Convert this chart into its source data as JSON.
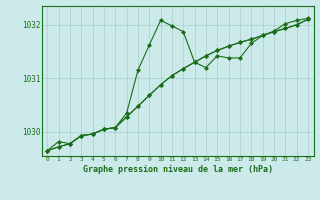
{
  "bg_color": "#cceaea",
  "grid_color": "#aacccc",
  "line_color": "#1a6e1a",
  "title": "Graphe pression niveau de la mer (hPa)",
  "xlabel_ticks": [
    0,
    1,
    2,
    3,
    4,
    5,
    6,
    7,
    8,
    9,
    10,
    11,
    12,
    13,
    14,
    15,
    16,
    17,
    18,
    19,
    20,
    21,
    22,
    23
  ],
  "ylim": [
    1029.55,
    1032.35
  ],
  "yticks": [
    1030,
    1031,
    1032
  ],
  "s1": [
    1029.65,
    1029.82,
    1029.78,
    1029.93,
    1029.96,
    1030.05,
    1030.08,
    1030.35,
    1031.15,
    1031.62,
    1032.08,
    1031.98,
    1031.87,
    1031.3,
    1031.2,
    1031.42,
    1031.38,
    1031.38,
    1031.65,
    1031.8,
    1031.88,
    1032.02,
    1032.08,
    1032.12
  ],
  "s2": [
    1029.65,
    1029.72,
    1029.78,
    1029.93,
    1029.96,
    1030.05,
    1030.08,
    1030.28,
    1030.48,
    1030.68,
    1030.88,
    1031.05,
    1031.18,
    1031.3,
    1031.42,
    1031.52,
    1031.6,
    1031.67,
    1031.73,
    1031.8,
    1031.87,
    1031.93,
    1032.0,
    1032.1
  ],
  "s3": [
    1029.65,
    1029.72,
    1029.78,
    1029.93,
    1029.96,
    1030.05,
    1030.08,
    1030.28,
    1030.48,
    1030.68,
    1030.88,
    1031.05,
    1031.18,
    1031.3,
    1031.42,
    1031.52,
    1031.6,
    1031.67,
    1031.73,
    1031.8,
    1031.87,
    1031.93,
    1032.0,
    1032.1
  ],
  "marker_size": 2.0,
  "line_width": 0.8
}
